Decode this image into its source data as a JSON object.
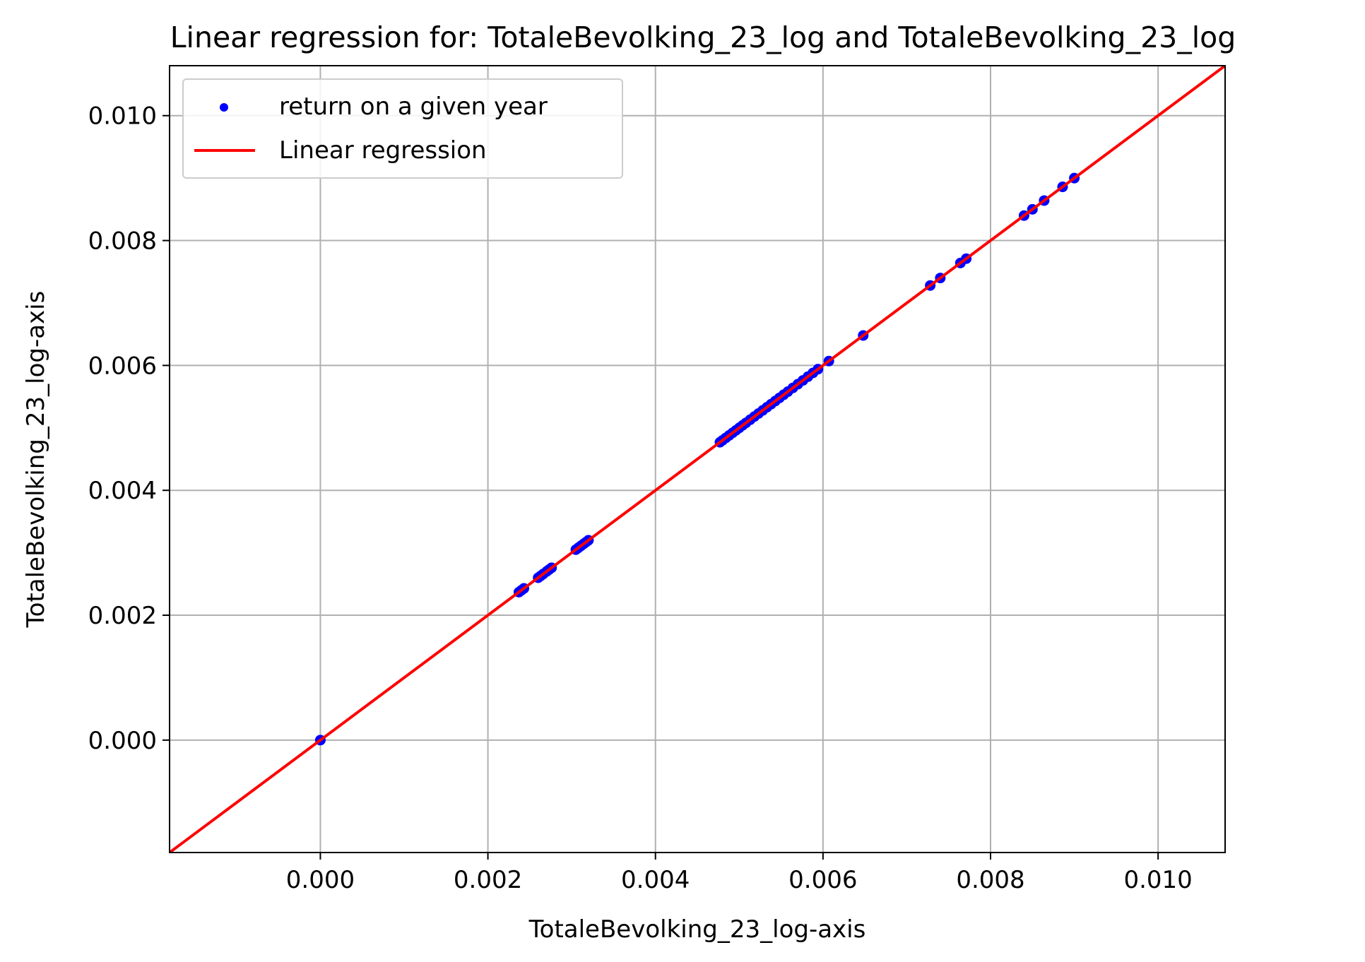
{
  "chart_data": {
    "type": "scatter",
    "title": "Linear regression for: TotaleBevolking_23_log and TotaleBevolking_23_log",
    "xlabel": "TotaleBevolking_23_log-axis",
    "ylabel": "TotaleBevolking_23_log-axis",
    "xlim": [
      -0.0018,
      0.0108
    ],
    "ylim": [
      -0.0018,
      0.0108
    ],
    "xticks": [
      0.0,
      0.002,
      0.004,
      0.006,
      0.008,
      0.01
    ],
    "yticks": [
      0.0,
      0.002,
      0.004,
      0.006,
      0.008,
      0.01
    ],
    "xtick_labels": [
      "0.000",
      "0.002",
      "0.004",
      "0.006",
      "0.008",
      "0.010"
    ],
    "ytick_labels": [
      "0.000",
      "0.002",
      "0.004",
      "0.006",
      "0.008",
      "0.010"
    ],
    "grid": true,
    "legend_position": "top-left",
    "series": [
      {
        "name": "return on a given year",
        "kind": "scatter",
        "color": "#0000ff",
        "x": [
          0.0,
          0.00237,
          0.0024,
          0.00243,
          0.0026,
          0.00263,
          0.00266,
          0.0027,
          0.00273,
          0.00276,
          0.00305,
          0.00308,
          0.00311,
          0.00314,
          0.00317,
          0.0032,
          0.00477,
          0.0048,
          0.00484,
          0.00488,
          0.00492,
          0.00496,
          0.005,
          0.00504,
          0.00508,
          0.00513,
          0.00518,
          0.00523,
          0.00528,
          0.00533,
          0.00538,
          0.00543,
          0.00548,
          0.00553,
          0.00558,
          0.00564,
          0.0057,
          0.00576,
          0.00582,
          0.00588,
          0.00594,
          0.00607,
          0.00648,
          0.00728,
          0.0074,
          0.00764,
          0.00771,
          0.0084,
          0.0085,
          0.00864,
          0.00886,
          0.009
        ],
        "y": [
          0.0,
          0.00237,
          0.0024,
          0.00243,
          0.0026,
          0.00263,
          0.00266,
          0.0027,
          0.00273,
          0.00276,
          0.00305,
          0.00308,
          0.00311,
          0.00314,
          0.00317,
          0.0032,
          0.00477,
          0.0048,
          0.00484,
          0.00488,
          0.00492,
          0.00496,
          0.005,
          0.00504,
          0.00508,
          0.00513,
          0.00518,
          0.00523,
          0.00528,
          0.00533,
          0.00538,
          0.00543,
          0.00548,
          0.00553,
          0.00558,
          0.00564,
          0.0057,
          0.00576,
          0.00582,
          0.00588,
          0.00594,
          0.00607,
          0.00648,
          0.00728,
          0.0074,
          0.00764,
          0.00771,
          0.0084,
          0.0085,
          0.00864,
          0.00886,
          0.009
        ]
      },
      {
        "name": "Linear regression",
        "kind": "line",
        "color": "#ff0000",
        "x": [
          -0.0018,
          0.0108
        ],
        "y": [
          -0.0018,
          0.0108
        ]
      }
    ]
  }
}
